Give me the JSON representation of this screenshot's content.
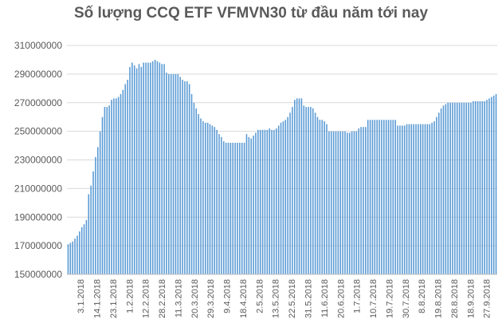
{
  "chart_data": {
    "type": "bar",
    "title": "Số lượng CCQ ETF VFMVN30 từ đầu năm tới nay",
    "xlabel": "",
    "ylabel": "",
    "ylim": [
      150000000,
      310000000
    ],
    "y_ticks": [
      150000000,
      170000000,
      190000000,
      210000000,
      230000000,
      250000000,
      270000000,
      290000000,
      310000000
    ],
    "y_tick_labels": [
      "150000000",
      "170000000",
      "190000000",
      "210000000",
      "230000000",
      "250000000",
      "270000000",
      "290000000",
      "310000000"
    ],
    "x_tick_labels": [
      "3.1.2018",
      "14.1.2018",
      "23.1.2018",
      "1.2.2018",
      "12.2.2018",
      "28.2.2018",
      "11.3.2018",
      "20.3.2018",
      "29.3.2018",
      "9.4.2018",
      "18.4.2018",
      "2.5.2018",
      "13.5.2018",
      "22.5.2018",
      "31.5.2018",
      "11.6.2018",
      "20.6.2018",
      "1.7.2018",
      "10.7.2018",
      "19.7.2018",
      "30.7.2018",
      "8.8.2018",
      "19.8.2018",
      "28.8.2018",
      "18.9.2018",
      "27.9.2018"
    ],
    "grid": true,
    "bar_color": "#5b9bd5",
    "values": [
      171000000,
      172000000,
      173000000,
      175000000,
      177000000,
      180000000,
      183000000,
      185000000,
      188000000,
      206000000,
      212000000,
      222000000,
      232000000,
      239000000,
      250000000,
      260000000,
      267000000,
      267000000,
      268000000,
      272000000,
      273000000,
      273000000,
      274000000,
      276000000,
      279000000,
      283000000,
      286000000,
      295000000,
      298000000,
      296000000,
      294000000,
      297000000,
      295000000,
      298000000,
      298000000,
      298000000,
      298000000,
      299000000,
      300000000,
      299000000,
      298000000,
      297000000,
      297000000,
      291000000,
      290000000,
      290000000,
      290000000,
      290000000,
      290000000,
      288000000,
      286000000,
      285000000,
      285000000,
      283000000,
      276000000,
      270000000,
      266000000,
      262000000,
      259000000,
      257000000,
      256000000,
      256000000,
      255000000,
      254000000,
      253000000,
      251000000,
      248000000,
      246000000,
      243000000,
      242000000,
      242000000,
      242000000,
      242000000,
      242000000,
      242000000,
      242000000,
      242000000,
      242000000,
      248000000,
      246000000,
      245000000,
      247000000,
      249000000,
      251000000,
      251000000,
      251000000,
      251000000,
      251000000,
      252000000,
      251000000,
      251000000,
      252000000,
      254000000,
      256000000,
      257000000,
      258000000,
      260000000,
      263000000,
      267000000,
      272000000,
      273000000,
      273000000,
      273000000,
      268000000,
      267000000,
      267000000,
      267000000,
      266000000,
      263000000,
      260000000,
      258000000,
      258000000,
      257000000,
      255000000,
      250000000,
      250000000,
      250000000,
      250000000,
      250000000,
      250000000,
      250000000,
      250000000,
      249000000,
      249000000,
      250000000,
      250000000,
      250000000,
      252000000,
      253000000,
      253000000,
      253000000,
      258000000,
      258000000,
      258000000,
      258000000,
      258000000,
      258000000,
      258000000,
      258000000,
      258000000,
      258000000,
      258000000,
      258000000,
      258000000,
      254000000,
      254000000,
      254000000,
      254000000,
      255000000,
      255000000,
      255000000,
      255000000,
      255000000,
      255000000,
      255000000,
      255000000,
      255000000,
      255000000,
      255000000,
      256000000,
      257000000,
      260000000,
      263000000,
      266000000,
      268000000,
      269000000,
      270000000,
      270000000,
      270000000,
      270000000,
      270000000,
      270000000,
      270000000,
      270000000,
      270000000,
      270000000,
      270000000,
      271000000,
      271000000,
      271000000,
      271000000,
      271000000,
      271000000,
      272000000,
      273000000,
      274000000,
      275000000,
      276000000
    ]
  }
}
